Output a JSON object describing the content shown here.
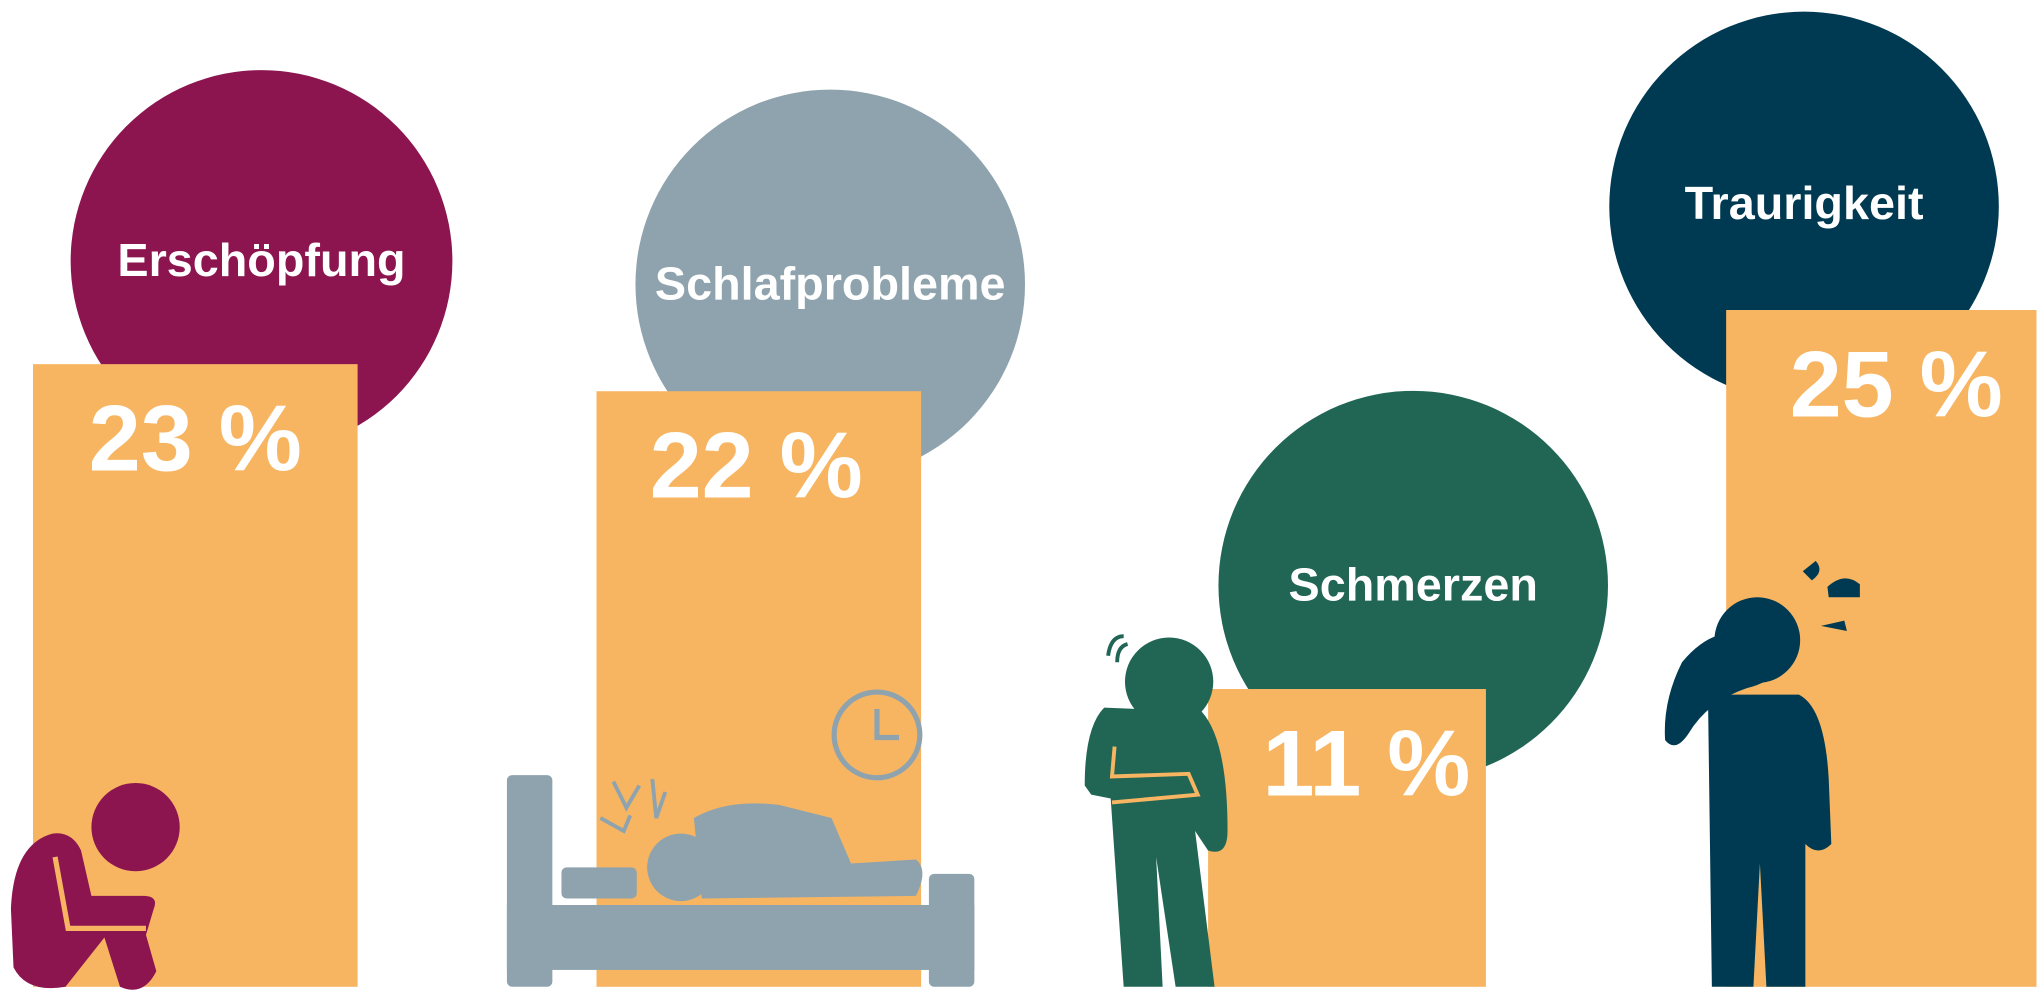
{
  "chart_data": {
    "type": "bar",
    "categories": [
      "Erschöpfung",
      "Schlafprobleme",
      "Schmerzen",
      "Traurigkeit"
    ],
    "values": [
      23,
      22,
      11,
      25
    ],
    "value_labels": [
      "23 %",
      "22 %",
      "11 %",
      "25 %"
    ],
    "colors": [
      "#8c1550",
      "#8fa3ae",
      "#216654",
      "#003a52"
    ],
    "bar_color": "#f7b562"
  }
}
